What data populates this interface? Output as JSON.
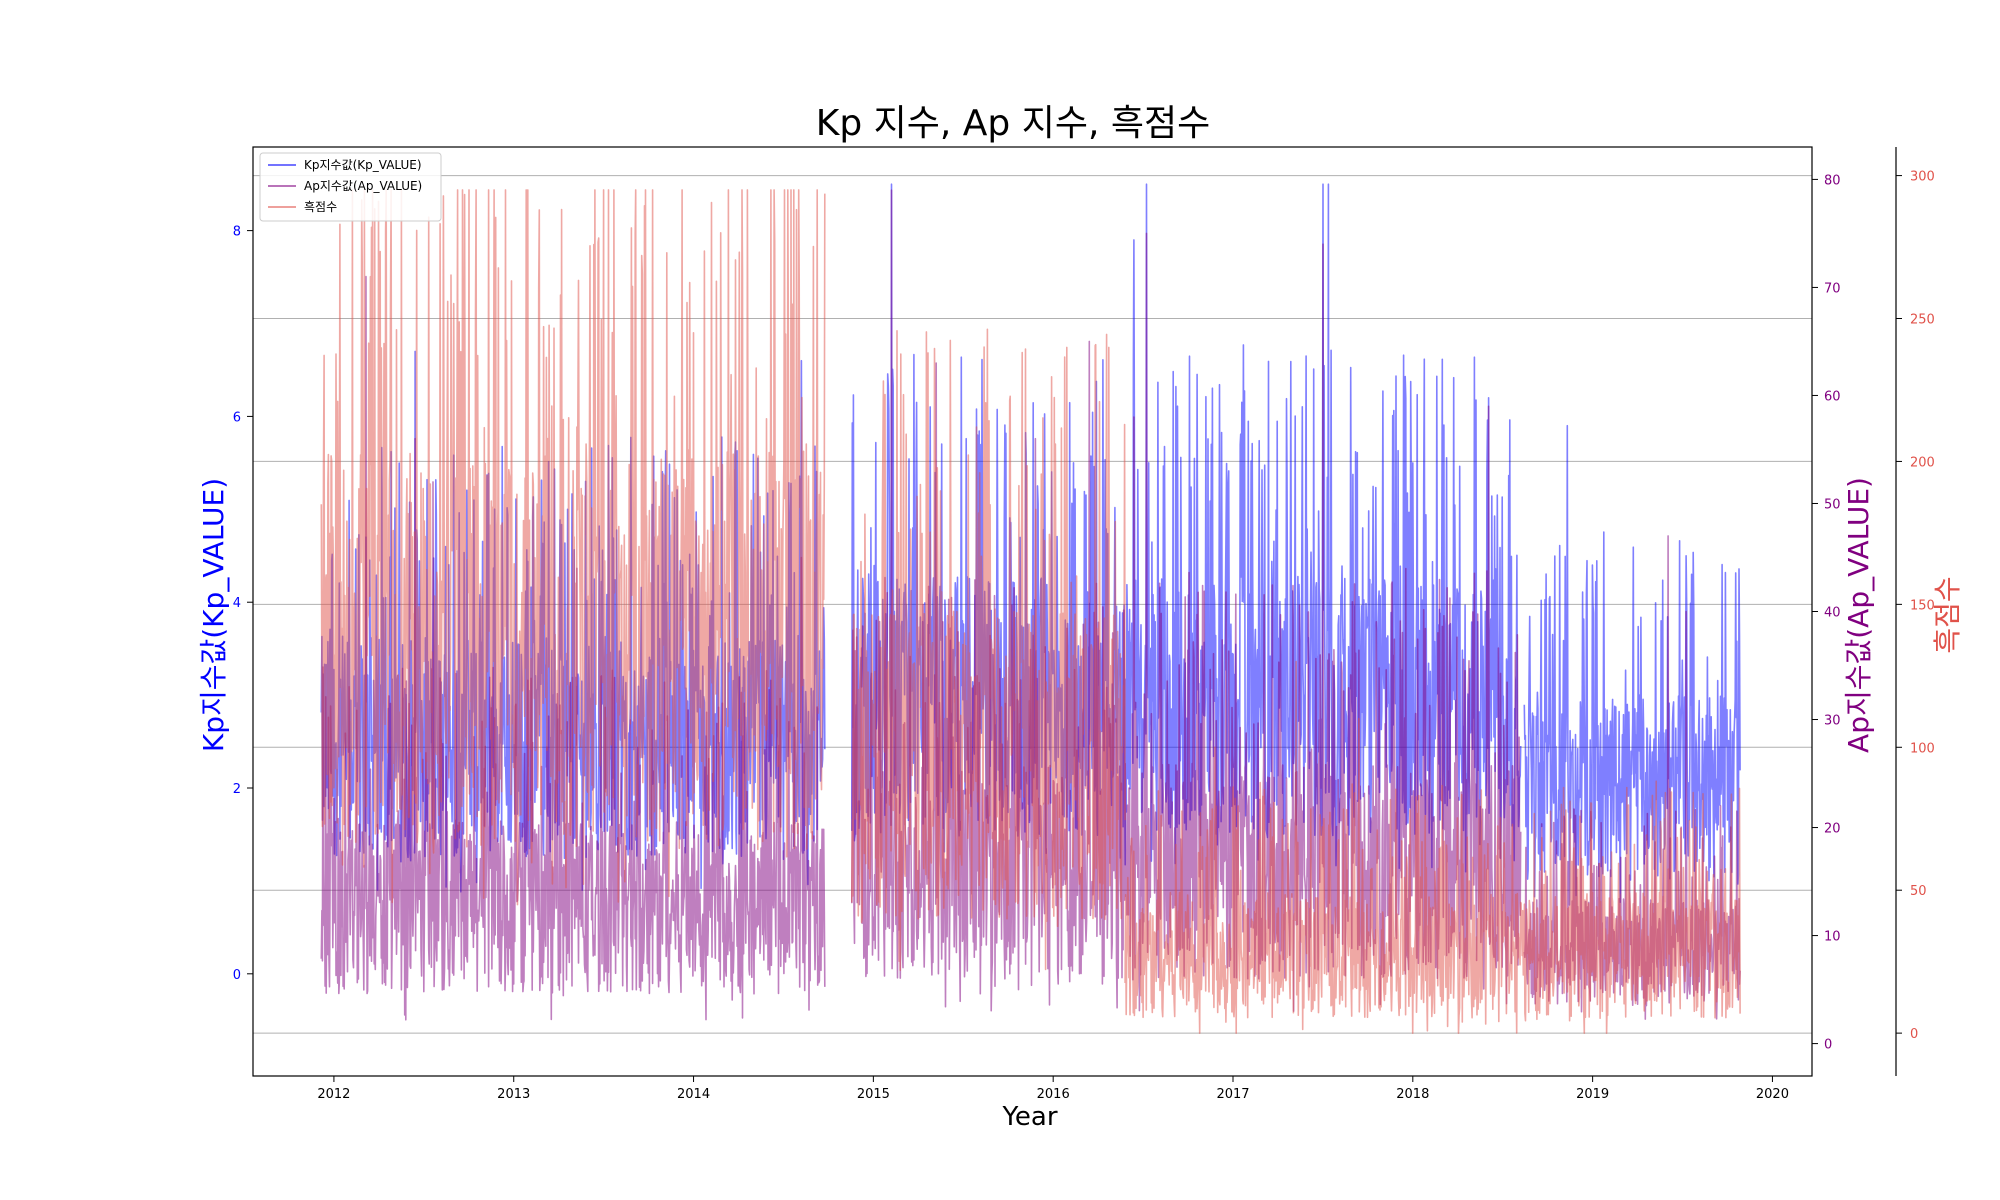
{
  "chart_data": {
    "type": "line",
    "title": "Kp 지수, Ap 지수, 흑점수",
    "xlabel": "Year",
    "xlim": [
      2011.55,
      2020.22
    ],
    "x_ticks": [
      "2012",
      "2013",
      "2014",
      "2015",
      "2016",
      "2017",
      "2018",
      "2019",
      "2020"
    ],
    "axes": {
      "kp": {
        "label": "Kp지수값(Kp_VALUE)",
        "color": "#0000ff",
        "ylim": [
          -1.1,
          8.9
        ],
        "ticks": [
          "0",
          "2",
          "4",
          "6",
          "8"
        ]
      },
      "ap": {
        "label": "Ap지수값(Ap_VALUE)",
        "color": "#800080",
        "ylim": [
          -3,
          83
        ],
        "ticks": [
          "0",
          "10",
          "20",
          "30",
          "40",
          "50",
          "60",
          "70",
          "80"
        ]
      },
      "sunspot": {
        "label": "흑점수",
        "color": "#e0524a",
        "ylim": [
          -15,
          310
        ],
        "ticks": [
          "0",
          "50",
          "100",
          "150",
          "200",
          "250",
          "300"
        ]
      }
    },
    "grid": "horizontal",
    "legend_position": "top-left",
    "series": [
      {
        "name": "Kp지수값(Kp_VALUE)",
        "axis": "kp",
        "color": "#0000ff",
        "alpha": 0.5,
        "segments": [
          {
            "start": 2011.93,
            "end": 2014.73,
            "base": 1.6,
            "amp": 1.2,
            "spikes": [
              [
                2012.18,
                4.7
              ],
              [
                2012.45,
                6.7
              ],
              [
                2012.62,
                4.6
              ],
              [
                2012.78,
                5.1
              ],
              [
                2013.3,
                5.0
              ],
              [
                2013.4,
                5.3
              ],
              [
                2013.85,
                4.0
              ],
              [
                2014.2,
                4.1
              ],
              [
                2014.6,
                6.6
              ]
            ]
          },
          {
            "start": 2014.88,
            "end": 2018.6,
            "base": 1.9,
            "amp": 1.4,
            "spikes": [
              [
                2015.1,
                8.5
              ],
              [
                2015.22,
                4.8
              ],
              [
                2015.58,
                5.8
              ],
              [
                2015.85,
                5.6
              ],
              [
                2016.45,
                7.9
              ],
              [
                2016.52,
                8.5
              ],
              [
                2016.88,
                5.7
              ],
              [
                2017.3,
                5.4
              ],
              [
                2017.5,
                8.5
              ],
              [
                2017.53,
                8.5
              ],
              [
                2017.72,
                4.8
              ],
              [
                2018.0,
                5.5
              ],
              [
                2018.35,
                5.7
              ],
              [
                2018.42,
                6.2
              ]
            ]
          },
          {
            "start": 2018.62,
            "end": 2019.82,
            "base": 1.3,
            "amp": 1.0,
            "spikes": [
              [
                2018.86,
                5.9
              ],
              [
                2019.0,
                4.4
              ],
              [
                2019.38,
                3.8
              ],
              [
                2019.52,
                4.5
              ],
              [
                2019.55,
                4.3
              ]
            ]
          }
        ]
      },
      {
        "name": "Ap지수값(Ap_VALUE)",
        "axis": "ap",
        "color": "#800080",
        "alpha": 0.5,
        "segments": [
          {
            "start": 2011.93,
            "end": 2014.73,
            "base": 7,
            "amp": 8,
            "spikes": [
              [
                2012.18,
                71
              ],
              [
                2012.45,
                56
              ],
              [
                2012.55,
                52
              ],
              [
                2013.35,
                44
              ],
              [
                2014.6,
                45
              ]
            ]
          },
          {
            "start": 2014.88,
            "end": 2018.6,
            "base": 9,
            "amp": 10,
            "spikes": [
              [
                2015.1,
                79
              ],
              [
                2015.35,
                63
              ],
              [
                2015.9,
                56
              ],
              [
                2016.2,
                65
              ],
              [
                2016.45,
                58
              ],
              [
                2016.52,
                75
              ],
              [
                2017.5,
                74
              ],
              [
                2018.42,
                59
              ]
            ]
          },
          {
            "start": 2018.62,
            "end": 2019.82,
            "base": 5,
            "amp": 5,
            "spikes": [
              [
                2019.42,
                47
              ],
              [
                2019.52,
                40
              ]
            ]
          }
        ]
      },
      {
        "name": "흑점수",
        "axis": "sunspot",
        "color": "#e0524a",
        "alpha": 0.5,
        "segments": [
          {
            "start": 2011.93,
            "end": 2014.73,
            "base": 85,
            "amp": 70,
            "spikes": [
              [
                2011.93,
                185
              ],
              [
                2012.4,
                150
              ],
              [
                2012.85,
                195
              ],
              [
                2013.35,
                212
              ],
              [
                2013.85,
                273
              ],
              [
                2014.0,
                245
              ],
              [
                2014.15,
                280
              ],
              [
                2014.3,
                295
              ],
              [
                2014.45,
                277
              ],
              [
                2014.55,
                255
              ]
            ]
          },
          {
            "start": 2014.88,
            "end": 2016.4,
            "base": 55,
            "amp": 55,
            "spikes": [
              [
                2014.93,
                165
              ],
              [
                2015.2,
                140
              ],
              [
                2015.8,
                125
              ]
            ]
          },
          {
            "start": 2016.4,
            "end": 2019.82,
            "base": 12,
            "amp": 22,
            "spikes": [
              [
                2016.9,
                100
              ],
              [
                2017.35,
                130
              ],
              [
                2017.7,
                110
              ],
              [
                2019.4,
                75
              ]
            ]
          }
        ]
      }
    ]
  }
}
